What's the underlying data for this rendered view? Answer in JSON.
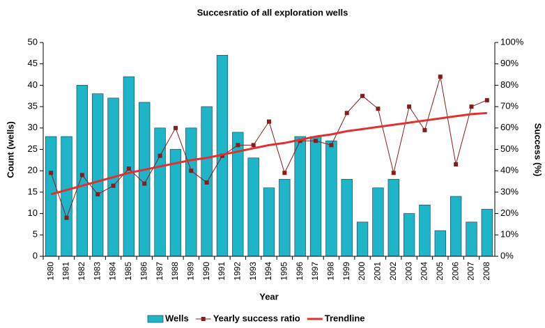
{
  "chart_data": {
    "type": "bar_line",
    "title": "Succesratio of all exploration wells",
    "x_label": "Year",
    "y_label": "Count (wells)",
    "y2_label": "Success (%)",
    "categories": [
      "1980",
      "1981",
      "1982",
      "1983",
      "1984",
      "1985",
      "1986",
      "1987",
      "1988",
      "1989",
      "1990",
      "1991",
      "1992",
      "1993",
      "1994",
      "1995",
      "1996",
      "1997",
      "1998",
      "1999",
      "2000",
      "2001",
      "2002",
      "2003",
      "2004",
      "2005",
      "2006",
      "2007",
      "2008"
    ],
    "series": [
      {
        "name": "Wells",
        "type": "bar",
        "color": "#1fb5c8",
        "values": [
          28,
          28,
          40,
          38,
          37,
          42,
          36,
          30,
          25,
          30,
          35,
          47,
          29,
          23,
          16,
          18,
          28,
          28,
          27,
          18,
          8,
          16,
          18,
          10,
          12,
          6,
          14,
          8,
          11
        ]
      },
      {
        "name": "Yearly success ratio",
        "type": "line",
        "axis": "y2",
        "color": "#8b1a1a",
        "values": [
          39,
          18,
          38,
          29,
          33,
          41,
          34,
          47,
          60,
          40,
          34.5,
          47,
          52,
          52,
          63,
          39,
          54,
          54,
          52,
          67,
          75,
          69,
          39,
          70,
          59,
          84,
          43,
          70,
          73
        ]
      },
      {
        "name": "Trendline",
        "type": "trend",
        "axis": "y2",
        "color": "#e03030",
        "values": [
          29,
          31,
          33,
          35,
          37,
          39,
          40.5,
          42,
          43.5,
          45,
          46,
          47.5,
          49,
          50.5,
          52,
          53,
          54.5,
          56,
          57,
          58.5,
          59.5,
          60.5,
          61.5,
          62.5,
          63.5,
          64.5,
          65.5,
          66.5,
          67
        ]
      }
    ],
    "ylim": [
      0,
      50
    ],
    "yticks": [
      0,
      5,
      10,
      15,
      20,
      25,
      30,
      35,
      40,
      45,
      50
    ],
    "y2lim": [
      0,
      100
    ],
    "y2ticks": [
      {
        "value": 0,
        "label": "0%"
      },
      {
        "value": 10,
        "label": "10%"
      },
      {
        "value": 20,
        "label": "20%"
      },
      {
        "value": 30,
        "label": "30%"
      },
      {
        "value": 40,
        "label": "40%"
      },
      {
        "value": 50,
        "label": "50%"
      },
      {
        "value": 60,
        "label": "60%"
      },
      {
        "value": 70,
        "label": "70%"
      },
      {
        "value": 80,
        "label": "80%"
      },
      {
        "value": 90,
        "label": "90%"
      },
      {
        "value": 100,
        "label": "100%"
      }
    ]
  }
}
